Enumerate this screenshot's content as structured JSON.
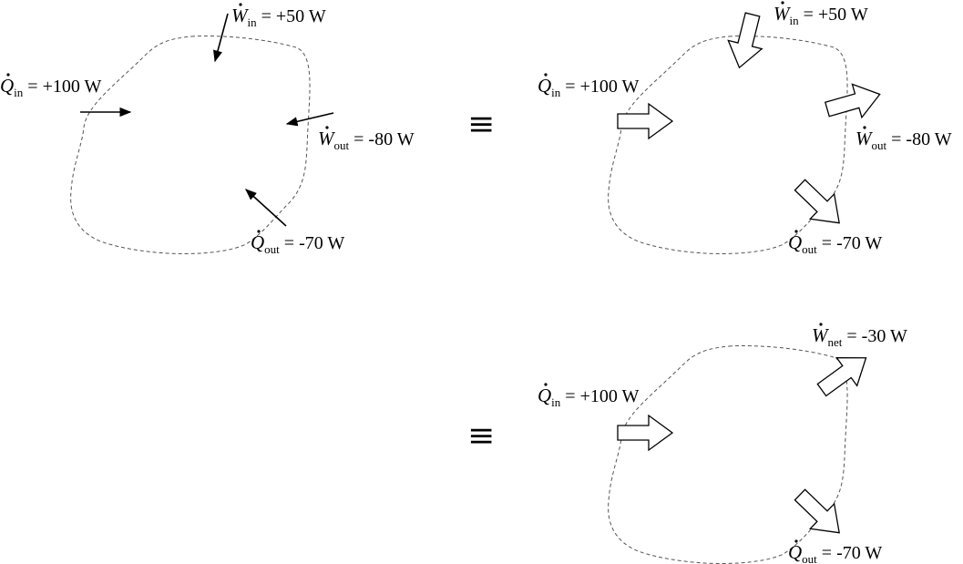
{
  "diagram_left": {
    "w_in": {
      "symbol": "W",
      "sub": "in",
      "value": " = +50 W"
    },
    "q_in": {
      "symbol": "Q",
      "sub": "in",
      "value": " = +100 W"
    },
    "w_out": {
      "symbol": "W",
      "sub": "out",
      "value": " = -80 W"
    },
    "q_out": {
      "symbol": "Q",
      "sub": "out",
      "value": " = -70 W"
    }
  },
  "equiv_symbol": "≡",
  "diagram_right_top": {
    "w_in": {
      "symbol": "W",
      "sub": "in",
      "value": " = +50 W"
    },
    "q_in": {
      "symbol": "Q",
      "sub": "in",
      "value": " = +100 W"
    },
    "w_out": {
      "symbol": "W",
      "sub": "out",
      "value": " = -80 W"
    },
    "q_out": {
      "symbol": "Q",
      "sub": "out",
      "value": " = -70 W"
    }
  },
  "diagram_right_bottom": {
    "w_net": {
      "symbol": "W",
      "sub": "net",
      "value": " = -30 W"
    },
    "q_in": {
      "symbol": "Q",
      "sub": "in",
      "value": " = +100 W"
    },
    "q_out": {
      "symbol": "Q",
      "sub": "out",
      "value": " = -70 W"
    }
  }
}
